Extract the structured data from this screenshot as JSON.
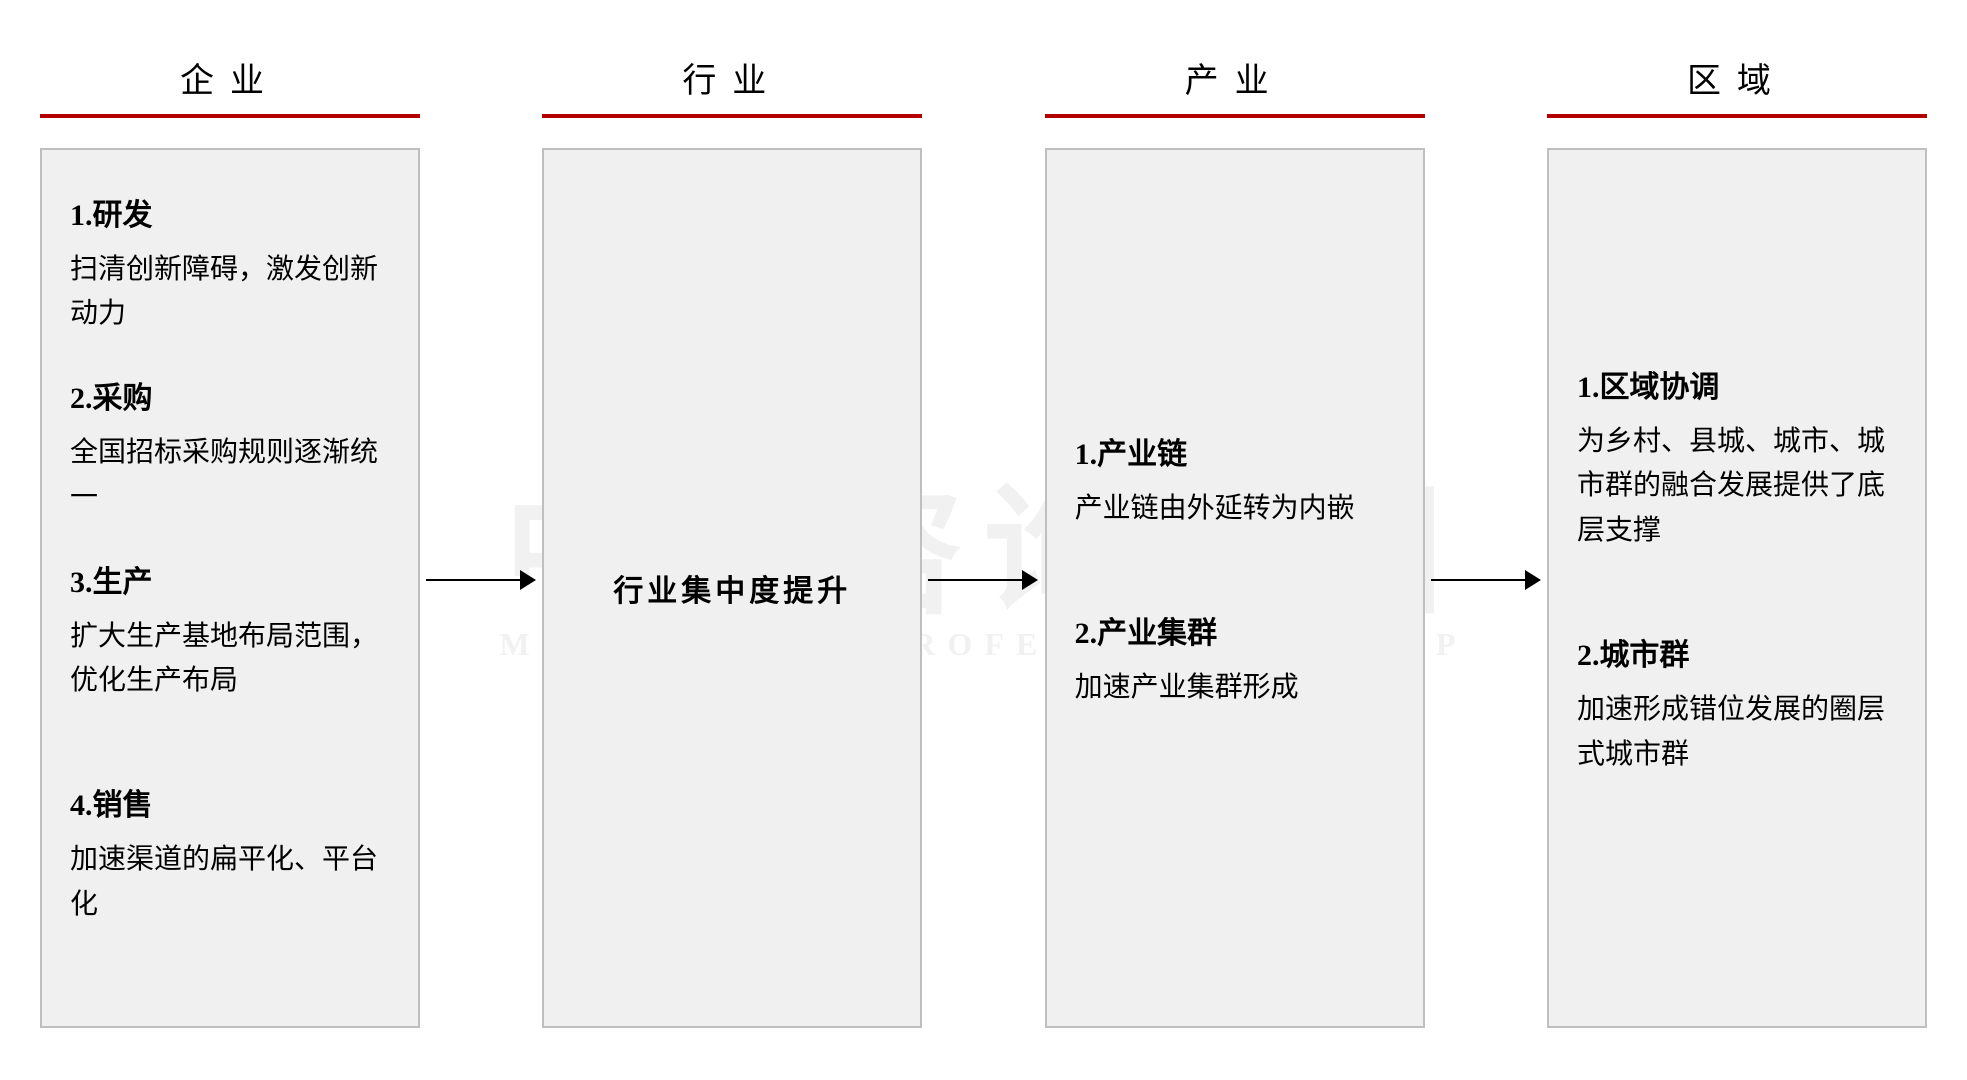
{
  "type": "flowchart",
  "layout": "horizontal-4-column-with-arrows",
  "background_color": "#ffffff",
  "box_background": "#f0f0f0",
  "box_border_color": "#bfbfbf",
  "box_border_width": 2,
  "header_underline_color": "#b30000",
  "header_underline_height": 4,
  "header_fontsize": 34,
  "title_fontsize": 30,
  "desc_fontsize": 28,
  "arrow_color": "#000000",
  "watermark": {
    "main": "中大咨询集团",
    "sub": "MANAGEMENT PROFESSIONAL GROUP",
    "color": "rgba(200,200,200,0.25)"
  },
  "columns": [
    {
      "header": "企业",
      "items": [
        {
          "title": "1.研发",
          "desc": "扫清创新障碍，激发创新动力"
        },
        {
          "title": "2.采购",
          "desc": "全国招标采购规则逐渐统一"
        },
        {
          "title": "3.生产",
          "desc": "扩大生产基地布局范围，优化生产布局"
        },
        {
          "title": "4.销售",
          "desc": "加速渠道的扁平化、平台化"
        }
      ]
    },
    {
      "header": "行业",
      "single": "行业集中度提升"
    },
    {
      "header": "产业",
      "items": [
        {
          "title": "1.产业链",
          "desc": "产业链由外延转为内嵌"
        },
        {
          "title": "2.产业集群",
          "desc": "加速产业集群形成"
        }
      ]
    },
    {
      "header": "区域",
      "items": [
        {
          "title": "1.区域协调",
          "desc": "为乡村、县城、城市、城市群的融合发展提供了底层支撑"
        },
        {
          "title": "2.城市群",
          "desc": "加速形成错位发展的圈层式城市群"
        }
      ]
    }
  ]
}
